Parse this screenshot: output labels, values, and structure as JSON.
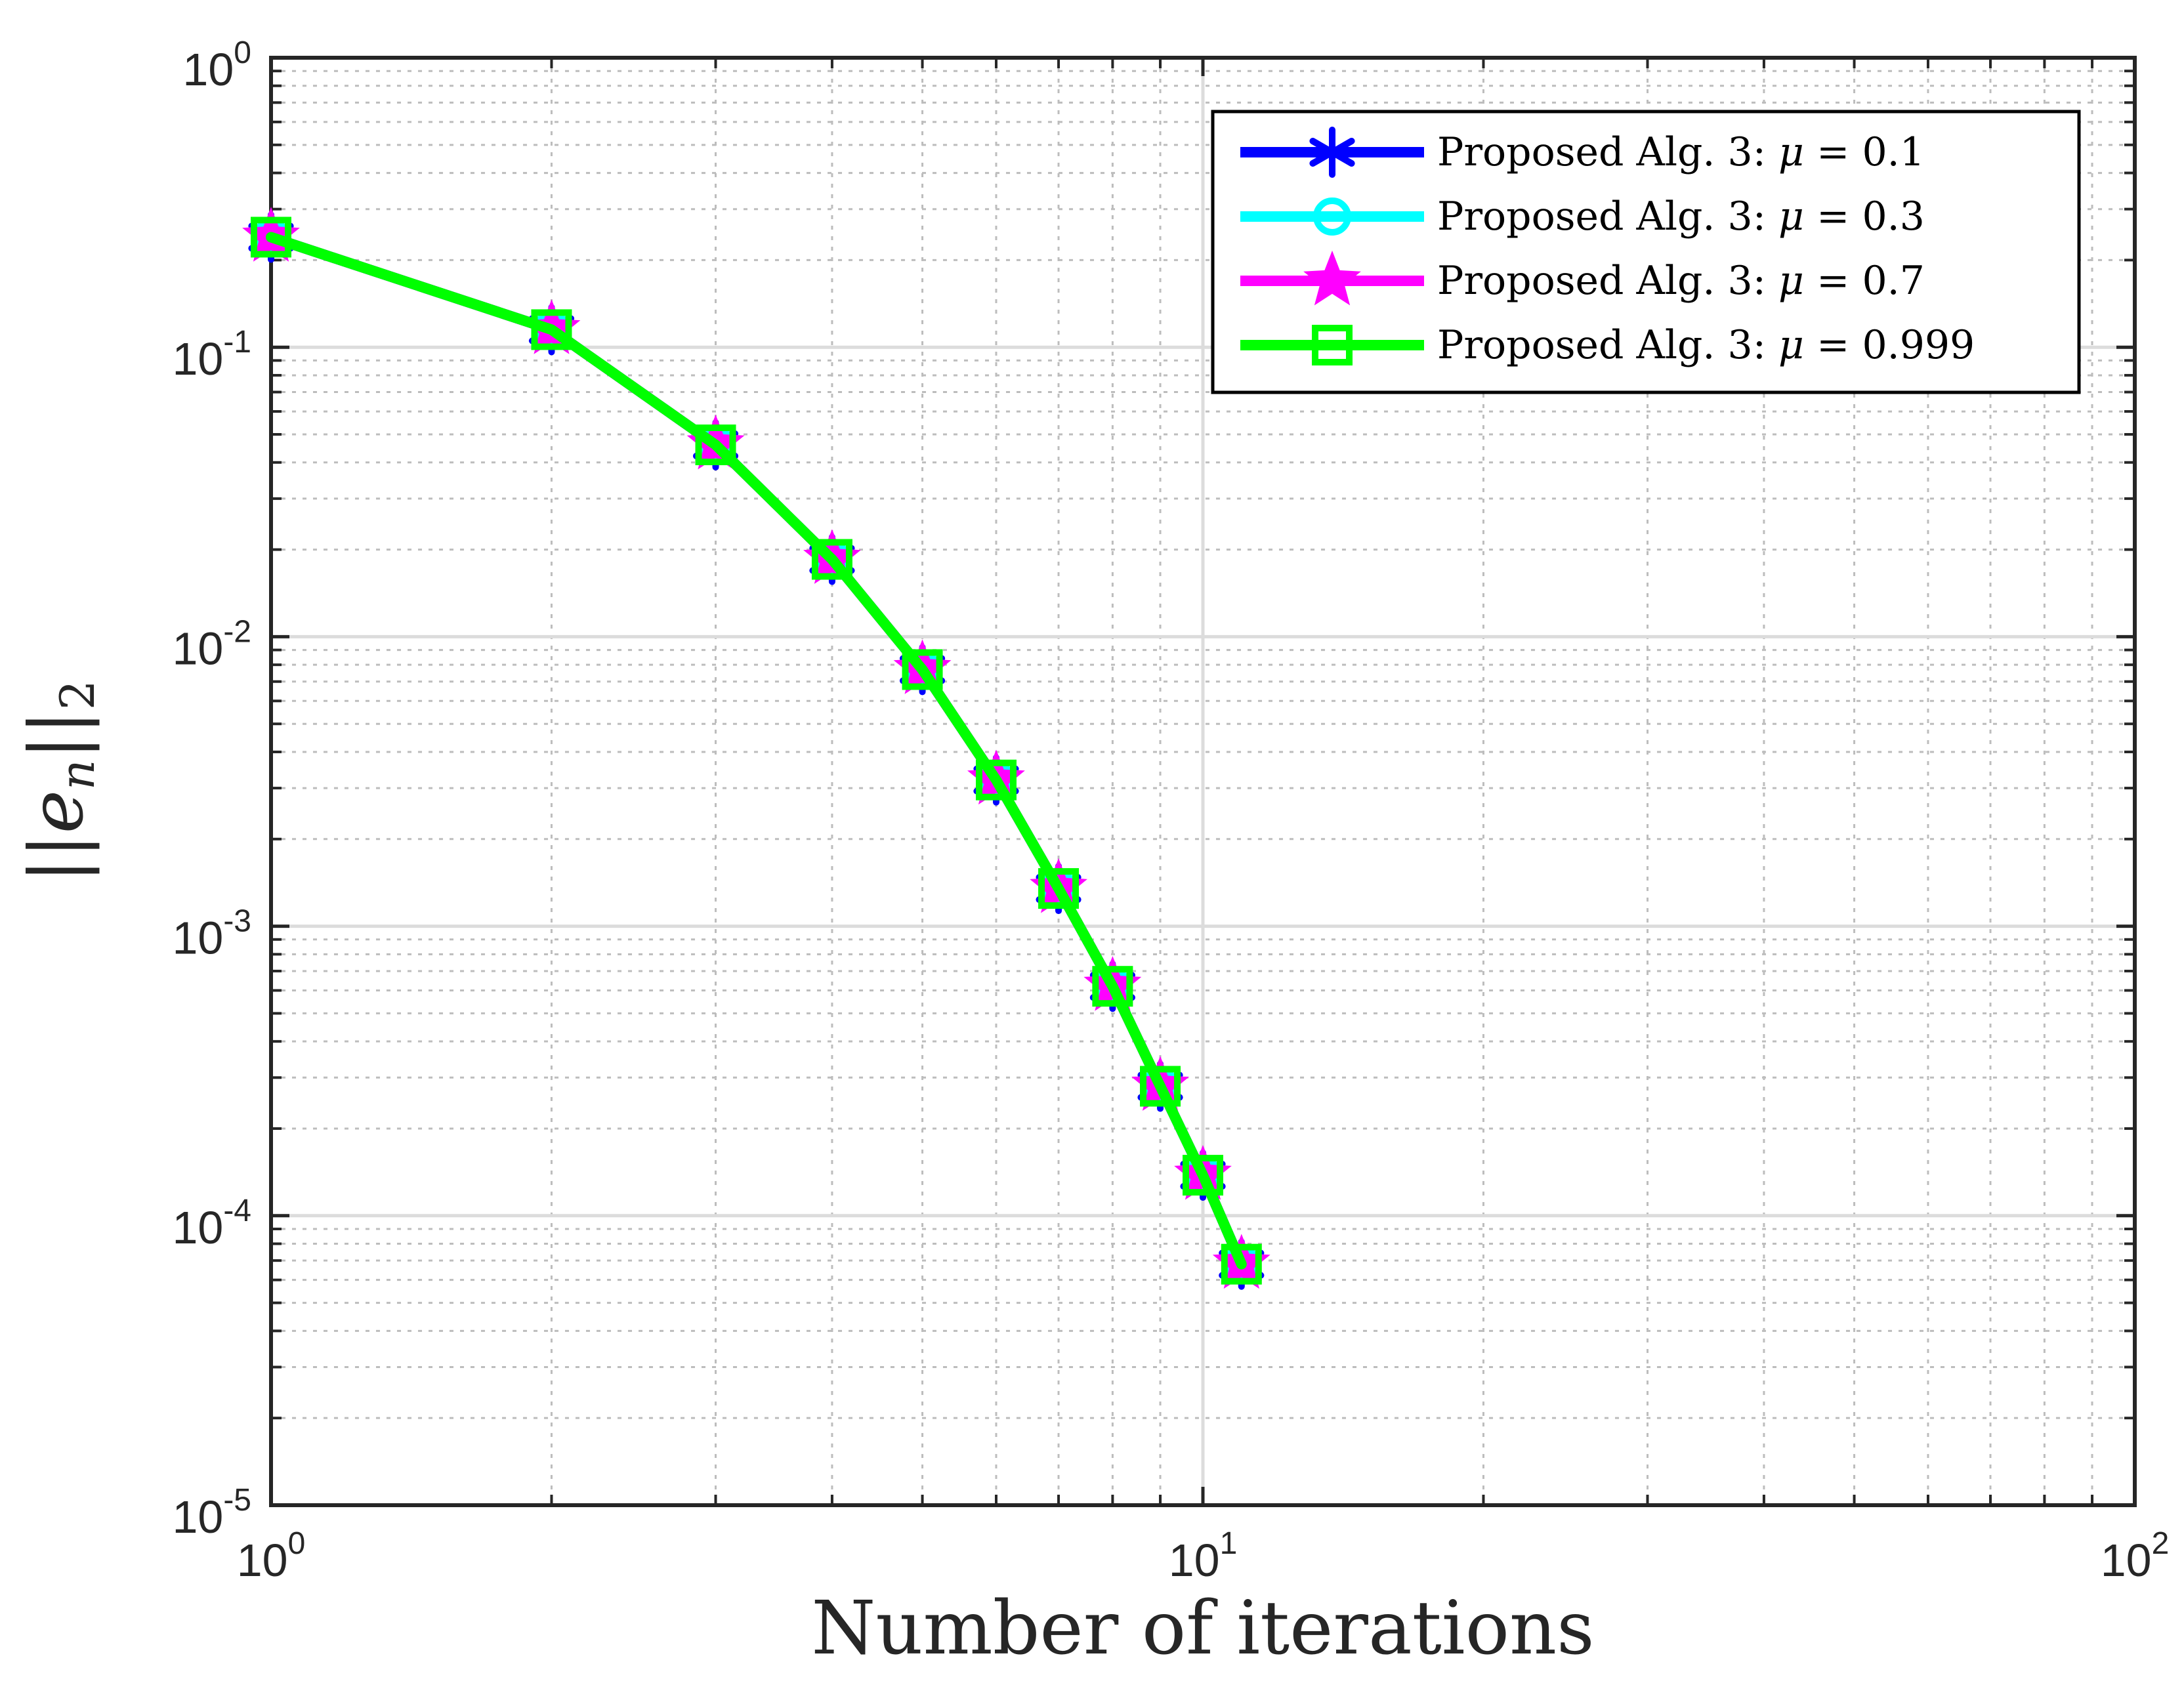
{
  "chart_data": {
    "type": "line",
    "title": "",
    "xlabel": "Number of iterations",
    "ylabel": "||e_n||_2",
    "ylabel_parts": {
      "base": "e",
      "subscript": "n",
      "outer_subscript": "2"
    },
    "x_scale": "log",
    "y_scale": "log",
    "xlim": [
      1,
      100
    ],
    "ylim": [
      1e-05,
      1
    ],
    "grid": true,
    "x_ticks": [
      {
        "value": 1,
        "base": "10",
        "exp": "0"
      },
      {
        "value": 10,
        "base": "10",
        "exp": "1"
      },
      {
        "value": 100,
        "base": "10",
        "exp": "2"
      }
    ],
    "y_ticks": [
      {
        "value": 1,
        "base": "10",
        "exp": "0"
      },
      {
        "value": 0.1,
        "base": "10",
        "exp": "-1"
      },
      {
        "value": 0.01,
        "base": "10",
        "exp": "-2"
      },
      {
        "value": 0.001,
        "base": "10",
        "exp": "-3"
      },
      {
        "value": 0.0001,
        "base": "10",
        "exp": "-4"
      },
      {
        "value": 1e-05,
        "base": "10",
        "exp": "-5"
      }
    ],
    "legend_position": "top-right",
    "x": [
      1,
      2,
      3,
      4,
      5,
      6,
      7,
      8,
      9,
      10,
      11
    ],
    "series": [
      {
        "name": "Proposed Alg. 3:",
        "mu_symbol": "μ",
        "mu_value": " = 0.1",
        "color": "#0000ff",
        "marker": "asterisk",
        "values": [
          0.24,
          0.115,
          0.046,
          0.0185,
          0.0077,
          0.0032,
          0.00135,
          0.00062,
          0.00028,
          0.000138,
          6.8e-05
        ]
      },
      {
        "name": "Proposed Alg. 3:",
        "mu_symbol": "μ",
        "mu_value": " = 0.3",
        "color": "#00ffff",
        "marker": "circle",
        "values": [
          0.24,
          0.115,
          0.046,
          0.0185,
          0.0077,
          0.0032,
          0.00135,
          0.00062,
          0.00028,
          0.000138,
          6.8e-05
        ]
      },
      {
        "name": "Proposed Alg. 3:",
        "mu_symbol": "μ",
        "mu_value": " = 0.7",
        "color": "#ff00ff",
        "marker": "star",
        "values": [
          0.24,
          0.115,
          0.046,
          0.0185,
          0.0077,
          0.0032,
          0.00135,
          0.00062,
          0.00028,
          0.000138,
          6.8e-05
        ]
      },
      {
        "name": "Proposed Alg. 3:",
        "mu_symbol": "μ",
        "mu_value": " = 0.999",
        "color": "#00ff00",
        "marker": "square",
        "values": [
          0.24,
          0.115,
          0.046,
          0.0185,
          0.0077,
          0.0032,
          0.00135,
          0.00062,
          0.00028,
          0.000138,
          6.8e-05
        ]
      }
    ]
  }
}
